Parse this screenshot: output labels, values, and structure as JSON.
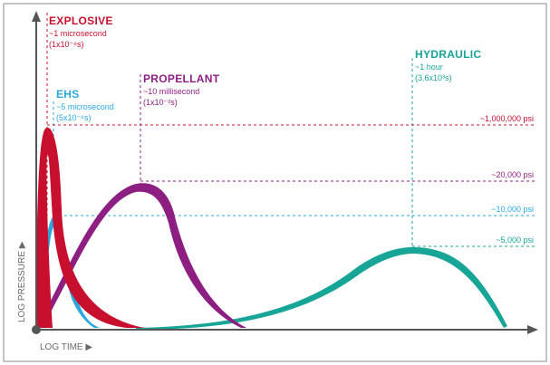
{
  "chart_data": {
    "type": "area",
    "xlabel": "LOG TIME ▶",
    "ylabel": "LOG PRESSURE ▶",
    "colors": {
      "explosive": "#c8102e",
      "ehs": "#29a8e0",
      "propellant": "#8e1f82",
      "hydraulic": "#16a597",
      "axis": "#555555"
    },
    "series": [
      {
        "key": "explosive",
        "name": "EXPLOSIVE",
        "time_label": "~1 microsecond",
        "time_value": "(1x10⁻⁶s)",
        "peak_pressure_label": "~1,000,000 psi"
      },
      {
        "key": "ehs",
        "name": "EHS",
        "time_label": "~5 microsecond",
        "time_value": "(5x10⁻⁶s)",
        "peak_pressure_label": "~10,000 psi"
      },
      {
        "key": "propellant",
        "name": "PROPELLANT",
        "time_label": "~10 millisecond",
        "time_value": "(1x10⁻²s)",
        "peak_pressure_label": "~20,000 psi"
      },
      {
        "key": "hydraulic",
        "name": "HYDRAULIC",
        "time_label": "~1 hour",
        "time_value": "(3.6x10³s)",
        "peak_pressure_label": "~5,000 psi"
      }
    ]
  }
}
